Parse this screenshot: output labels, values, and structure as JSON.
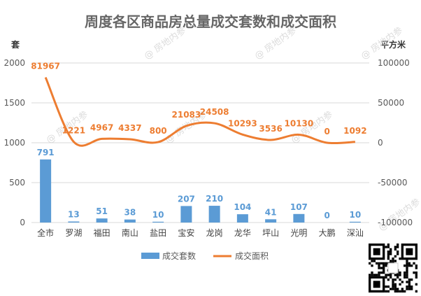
{
  "chart_data": {
    "type": "bar+line",
    "title": "周度各区商品房总量成交套数和成交面积",
    "left_axis_unit": "套",
    "right_axis_unit": "平方米",
    "categories": [
      "全市",
      "罗湖",
      "福田",
      "南山",
      "盐田",
      "宝安",
      "龙岗",
      "龙华",
      "坪山",
      "光明",
      "大鹏",
      "深汕"
    ],
    "left_ticks": [
      "0",
      "500",
      "1000",
      "1500",
      "2000"
    ],
    "right_ticks": [
      "-100000",
      "-50000",
      "0",
      "50000",
      "100000"
    ],
    "ylim_left": [
      0,
      2000
    ],
    "ylim_right": [
      -100000,
      100000
    ],
    "grid": true,
    "legend_position": "bottom",
    "series": [
      {
        "name": "成交套数",
        "type": "bar",
        "axis": "left",
        "color": "#5b9bd5",
        "values": [
          791,
          13,
          51,
          38,
          10,
          207,
          210,
          104,
          41,
          107,
          0,
          10
        ]
      },
      {
        "name": "成交面积",
        "type": "line",
        "axis": "right",
        "color": "#ed7d31",
        "smooth": true,
        "values": [
          81967,
          1221,
          4967,
          4337,
          800,
          21083,
          24508,
          10293,
          3536,
          10130,
          0,
          1092
        ]
      }
    ]
  },
  "watermark_text": "房地内参"
}
